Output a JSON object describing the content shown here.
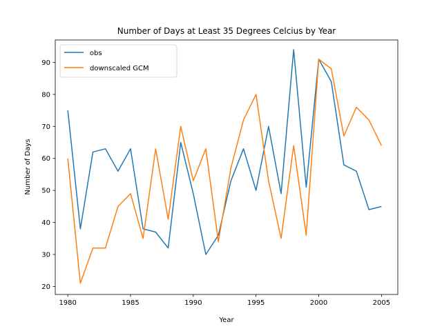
{
  "chart_data": {
    "type": "line",
    "title": "Number of Days at Least 35 Degrees Celcius by Year",
    "xlabel": "Year",
    "ylabel": "Number of Days",
    "x": [
      1980,
      1981,
      1982,
      1983,
      1984,
      1985,
      1986,
      1987,
      1988,
      1989,
      1990,
      1991,
      1992,
      1993,
      1994,
      1995,
      1996,
      1997,
      1998,
      1999,
      2000,
      2001,
      2002,
      2003,
      2004,
      2005
    ],
    "xlim": [
      1979,
      2006.3
    ],
    "ylim": [
      17.5,
      97
    ],
    "xticks": [
      1980,
      1985,
      1990,
      1995,
      2000,
      2005
    ],
    "yticks": [
      20,
      30,
      40,
      50,
      60,
      70,
      80,
      90
    ],
    "grid": false,
    "legend_position": "upper left",
    "series": [
      {
        "name": "obs",
        "color": "#1f77b4",
        "values": [
          75,
          38,
          62,
          63,
          56,
          63,
          38,
          37,
          32,
          65,
          49,
          30,
          36,
          53,
          63,
          50,
          70,
          49,
          94,
          51,
          91,
          84,
          58,
          56,
          44,
          45
        ]
      },
      {
        "name": "downscaled GCM",
        "color": "#ff7f0e",
        "values": [
          60,
          21,
          32,
          32,
          45,
          49,
          35,
          63,
          41,
          70,
          53,
          63,
          34,
          57,
          72,
          80,
          53,
          35,
          64,
          36,
          91,
          88,
          67,
          76,
          72,
          64
        ]
      }
    ]
  }
}
